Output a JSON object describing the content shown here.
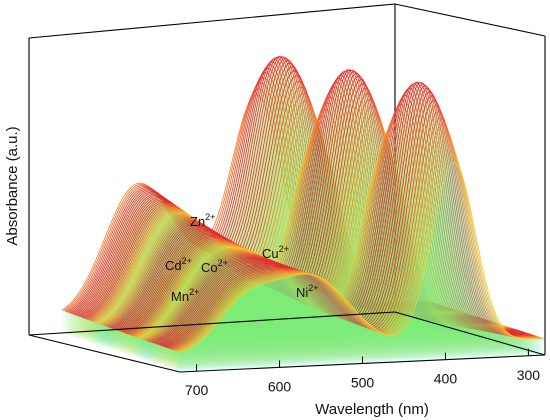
{
  "chart_data": {
    "type": "area",
    "ylabel": "Absorbance (a.u.)",
    "xlabel": "Wavelength (nm)",
    "x_ticks": [
      "700",
      "600",
      "500",
      "400",
      "300"
    ],
    "x_range": [
      720,
      280
    ],
    "y_ticks": "none",
    "colormap": [
      "#5a3cf0",
      "#4c7cff",
      "#2ec8ff",
      "#3cf0c8",
      "#8cf06c",
      "#f0e23c",
      "#ff8c28",
      "#e6282f"
    ],
    "series": [
      {
        "name": "Zn",
        "charge": "2+"
      },
      {
        "name": "Cd",
        "charge": "2+"
      },
      {
        "name": "Co",
        "charge": "2+"
      },
      {
        "name": "Cu",
        "charge": "2+"
      },
      {
        "name": "Mn",
        "charge": "2+"
      },
      {
        "name": "Ni",
        "charge": "2+"
      }
    ]
  }
}
